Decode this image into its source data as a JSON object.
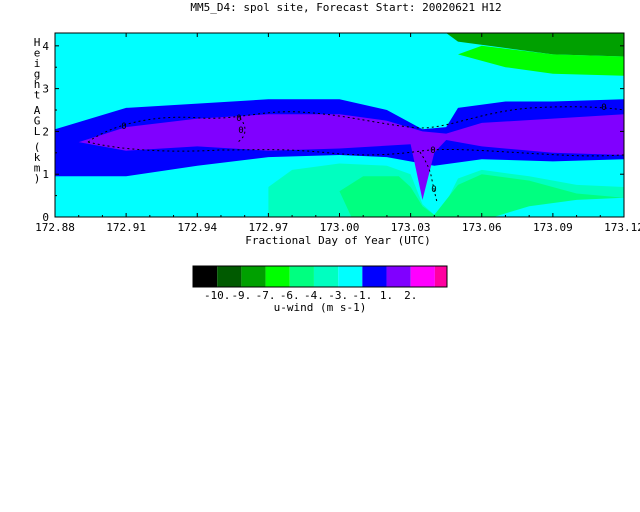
{
  "chart_data": {
    "type": "heatmap",
    "title": "MM5_D4: spol site,  Forecast Start: 20020621 H12",
    "xlabel": "Fractional Day of Year (UTC)",
    "ylabel": "Height AGL (km)",
    "xlim": [
      172.88,
      173.12
    ],
    "ylim": [
      0,
      4.3
    ],
    "x_ticks": [
      "172.88",
      "172.91",
      "172.94",
      "172.97",
      "173.00",
      "173.03",
      "173.06",
      "173.09",
      "173.12"
    ],
    "y_ticks": [
      "0",
      "1",
      "2",
      "3",
      "4"
    ],
    "colorbar": {
      "label": "u-wind (m s-1)",
      "ticks": [
        "-10.",
        "-9.",
        "-7.",
        "-6.",
        "-4.",
        "-3.",
        "-1.",
        "1.",
        "2."
      ],
      "colors": [
        "#000000",
        "#005a00",
        "#00a000",
        "#00ff00",
        "#00ff80",
        "#00ffc0",
        "#00ffff",
        "#0000ff",
        "#8000ff",
        "#ff00ff",
        "#ff00a0"
      ]
    },
    "contour_labels": [
      "0",
      "0",
      "0",
      "0",
      "0",
      "0"
    ],
    "field_regions": [
      {
        "level": "-9",
        "points": [
          [
            173.045,
            4.3
          ],
          [
            173.12,
            4.3
          ],
          [
            173.12,
            3.75
          ],
          [
            173.09,
            3.8
          ],
          [
            173.07,
            3.95
          ],
          [
            173.05,
            4.1
          ]
        ]
      },
      {
        "level": "-7",
        "points": [
          [
            173.06,
            4.0
          ],
          [
            173.09,
            3.8
          ],
          [
            173.12,
            3.75
          ],
          [
            173.12,
            3.3
          ],
          [
            173.09,
            3.35
          ],
          [
            173.07,
            3.5
          ],
          [
            173.05,
            3.8
          ]
        ]
      },
      {
        "level": "-3",
        "points": [
          [
            172.88,
            2.05
          ],
          [
            172.91,
            2.8
          ],
          [
            172.94,
            2.9
          ],
          [
            172.97,
            3.2
          ],
          [
            173.0,
            3.1
          ],
          [
            173.02,
            3.0
          ],
          [
            173.04,
            2.9
          ],
          [
            173.05,
            2.95
          ],
          [
            173.07,
            3.0
          ],
          [
            173.09,
            3.05
          ],
          [
            173.12,
            3.1
          ],
          [
            173.12,
            1.6
          ],
          [
            172.88,
            1.6
          ]
        ]
      },
      {
        "level": "-1",
        "points": [
          [
            172.88,
            2.05
          ],
          [
            172.91,
            2.55
          ],
          [
            172.94,
            2.65
          ],
          [
            172.97,
            2.75
          ],
          [
            173.0,
            2.75
          ],
          [
            173.02,
            2.5
          ],
          [
            173.035,
            2.05
          ],
          [
            173.045,
            2.1
          ],
          [
            173.05,
            2.55
          ],
          [
            173.07,
            2.7
          ],
          [
            173.09,
            2.7
          ],
          [
            173.12,
            2.75
          ],
          [
            173.12,
            1.35
          ],
          [
            173.09,
            1.3
          ],
          [
            173.06,
            1.35
          ],
          [
            173.04,
            1.2
          ],
          [
            173.02,
            1.4
          ],
          [
            173.0,
            1.45
          ],
          [
            172.97,
            1.4
          ],
          [
            172.94,
            1.2
          ],
          [
            172.91,
            0.95
          ],
          [
            172.88,
            0.95
          ]
        ]
      },
      {
        "level": "1",
        "points": [
          [
            172.89,
            1.75
          ],
          [
            172.91,
            2.1
          ],
          [
            172.94,
            2.3
          ],
          [
            172.97,
            2.4
          ],
          [
            173.0,
            2.4
          ],
          [
            173.02,
            2.25
          ],
          [
            173.035,
            2.0
          ],
          [
            173.045,
            1.95
          ],
          [
            173.06,
            2.2
          ],
          [
            173.09,
            2.3
          ],
          [
            173.12,
            2.4
          ],
          [
            173.12,
            1.45
          ],
          [
            173.09,
            1.5
          ],
          [
            173.06,
            1.65
          ],
          [
            173.045,
            1.8
          ],
          [
            173.04,
            1.5
          ],
          [
            173.035,
            0.4
          ],
          [
            173.03,
            1.7
          ],
          [
            173.0,
            1.6
          ],
          [
            172.97,
            1.55
          ],
          [
            172.94,
            1.65
          ],
          [
            172.91,
            1.55
          ]
        ]
      },
      {
        "level": "-4",
        "points": [
          [
            172.97,
            0.0
          ],
          [
            172.97,
            0.7
          ],
          [
            172.98,
            1.1
          ],
          [
            173.0,
            1.25
          ],
          [
            173.02,
            1.2
          ],
          [
            173.03,
            1.0
          ],
          [
            173.035,
            0.3
          ],
          [
            173.04,
            0.05
          ],
          [
            173.045,
            0.35
          ],
          [
            173.05,
            0.9
          ],
          [
            173.06,
            1.1
          ],
          [
            173.08,
            0.95
          ],
          [
            173.1,
            0.75
          ],
          [
            173.12,
            0.7
          ],
          [
            173.12,
            0.0
          ]
        ]
      },
      {
        "level": "-6",
        "points": [
          [
            173.005,
            0.0
          ],
          [
            173.0,
            0.6
          ],
          [
            173.01,
            0.95
          ],
          [
            173.025,
            0.95
          ],
          [
            173.03,
            0.7
          ],
          [
            173.035,
            0.25
          ],
          [
            173.04,
            0.05
          ],
          [
            173.05,
            0.75
          ],
          [
            173.06,
            1.0
          ],
          [
            173.08,
            0.85
          ],
          [
            173.1,
            0.55
          ],
          [
            173.12,
            0.45
          ],
          [
            173.12,
            0.0
          ]
        ]
      },
      {
        "level": "-3",
        "points": [
          [
            173.065,
            0.0
          ],
          [
            173.08,
            0.25
          ],
          [
            173.1,
            0.4
          ],
          [
            173.12,
            0.45
          ],
          [
            173.12,
            0.0
          ]
        ]
      }
    ]
  }
}
